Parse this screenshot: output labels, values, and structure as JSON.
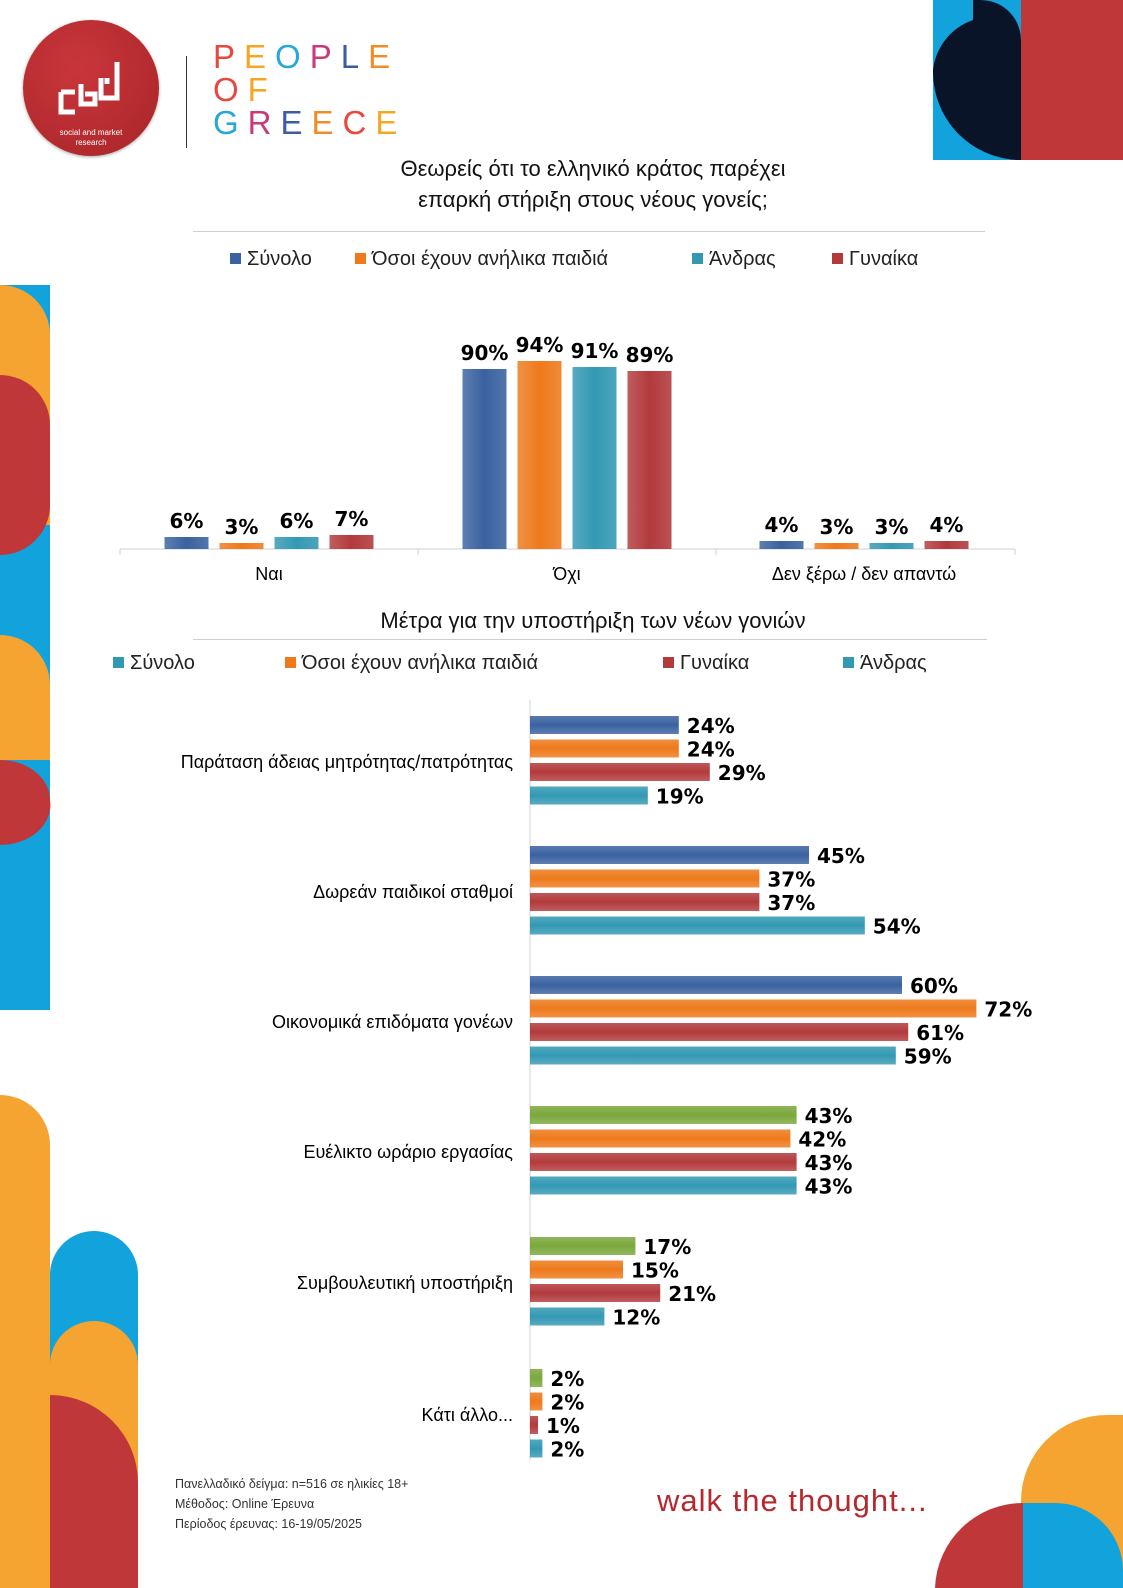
{
  "branding": {
    "logo_small_text": [
      "social and market",
      "research"
    ],
    "wordmark_lines": [
      "PEOPLE",
      "OF",
      "GREECE"
    ],
    "wordmark_colors": [
      "#e8473c",
      "#f5a623",
      "#2aa7d9",
      "#c93a78",
      "#3b5ba5",
      "#f28c28"
    ],
    "tagline": "walk the thought...",
    "decor_colors": [
      "#f5a431",
      "#c0373a",
      "#12a3dd",
      "#0a1428"
    ]
  },
  "footer": {
    "lines": [
      "Πανελλαδικό δείγμα: n=516 σε ηλικίες 18+",
      "Μέθοδος: Online Έρευνα",
      "Περίοδος έρευνας: 16-19/05/2025"
    ]
  },
  "chart_data": [
    {
      "type": "bar",
      "title": "Θεωρείς ότι το ελληνικό κράτος παρέχει επαρκή στήριξη στους νέους γονείς;",
      "title_lines": [
        "Θεωρείς ότι το ελληνικό κράτος παρέχει",
        "επαρκή στήριξη στους νέους γονείς;"
      ],
      "categories": [
        "Ναι",
        "Όχι",
        "Δεν ξέρω / δεν απαντώ"
      ],
      "series": [
        {
          "name": "Σύνολο",
          "color": "#3a62a0",
          "values": [
            6,
            90,
            4
          ],
          "labels": [
            "6%",
            "90%",
            "4%"
          ]
        },
        {
          "name": "Όσοι έχουν ανήλικα παιδιά",
          "color": "#ee7a1c",
          "values": [
            3,
            94,
            3
          ],
          "labels": [
            "3%",
            "94%",
            "3%"
          ]
        },
        {
          "name": "Άνδρας",
          "color": "#3399b3",
          "values": [
            6,
            91,
            3
          ],
          "labels": [
            "6%",
            "91%",
            "3%"
          ]
        },
        {
          "name": "Γυναίκα",
          "color": "#b23a3c",
          "values": [
            7,
            89,
            4
          ],
          "labels": [
            "7%",
            "89%",
            "4%"
          ]
        }
      ],
      "ylim": [
        0,
        100
      ],
      "grid": false,
      "legend_position": "top"
    },
    {
      "type": "bar",
      "orientation": "horizontal",
      "title": "Μέτρα για την υποστήριξη των νέων γονιών",
      "categories": [
        "Παράταση άδειας μητρότητας/πατρότητας",
        "Δωρεάν παιδικοί σταθμοί",
        "Οικονομικά επιδόματα γονέων",
        "Ευέλικτο ωράριο εργασίας",
        "Συμβουλευτική υποστήριξη",
        "Κάτι άλλο..."
      ],
      "legend": [
        {
          "name": "Σύνολο",
          "color": "#3399b3"
        },
        {
          "name": "Όσοι έχουν ανήλικα παιδιά",
          "color": "#ee7a1c"
        },
        {
          "name": "Γυναίκα",
          "color": "#b23a3c"
        },
        {
          "name": "Άνδρας",
          "color": "#3399b3"
        }
      ],
      "series": [
        {
          "name": "Σύνολο",
          "values": [
            24,
            45,
            60,
            43,
            17,
            2
          ],
          "labels": [
            "24%",
            "45%",
            "60%",
            "43%",
            "17%",
            "2%"
          ],
          "colors": [
            "#3a62a0",
            "#3a62a0",
            "#3a62a0",
            "#7ba83c",
            "#7ba83c",
            "#7ba83c"
          ]
        },
        {
          "name": "Όσοι έχουν ανήλικα παιδιά",
          "values": [
            24,
            37,
            72,
            42,
            15,
            2
          ],
          "labels": [
            "24%",
            "37%",
            "72%",
            "42%",
            "15%",
            "2%"
          ],
          "colors": [
            "#ee7a1c",
            "#ee7a1c",
            "#ee7a1c",
            "#ee7a1c",
            "#ee7a1c",
            "#ee7a1c"
          ]
        },
        {
          "name": "Γυναίκα",
          "values": [
            29,
            37,
            61,
            43,
            21,
            1
          ],
          "labels": [
            "29%",
            "37%",
            "61%",
            "43%",
            "21%",
            "1%"
          ],
          "colors": [
            "#b23a3c",
            "#b23a3c",
            "#b23a3c",
            "#b23a3c",
            "#b23a3c",
            "#b23a3c"
          ]
        },
        {
          "name": "Άνδρας",
          "values": [
            19,
            54,
            59,
            43,
            12,
            2
          ],
          "labels": [
            "19%",
            "54%",
            "59%",
            "43%",
            "12%",
            "2%"
          ],
          "colors": [
            "#3399b3",
            "#3399b3",
            "#3399b3",
            "#3399b3",
            "#3399b3",
            "#3399b3"
          ]
        }
      ],
      "xlim": [
        0,
        80
      ],
      "grid": false,
      "legend_position": "top"
    }
  ]
}
